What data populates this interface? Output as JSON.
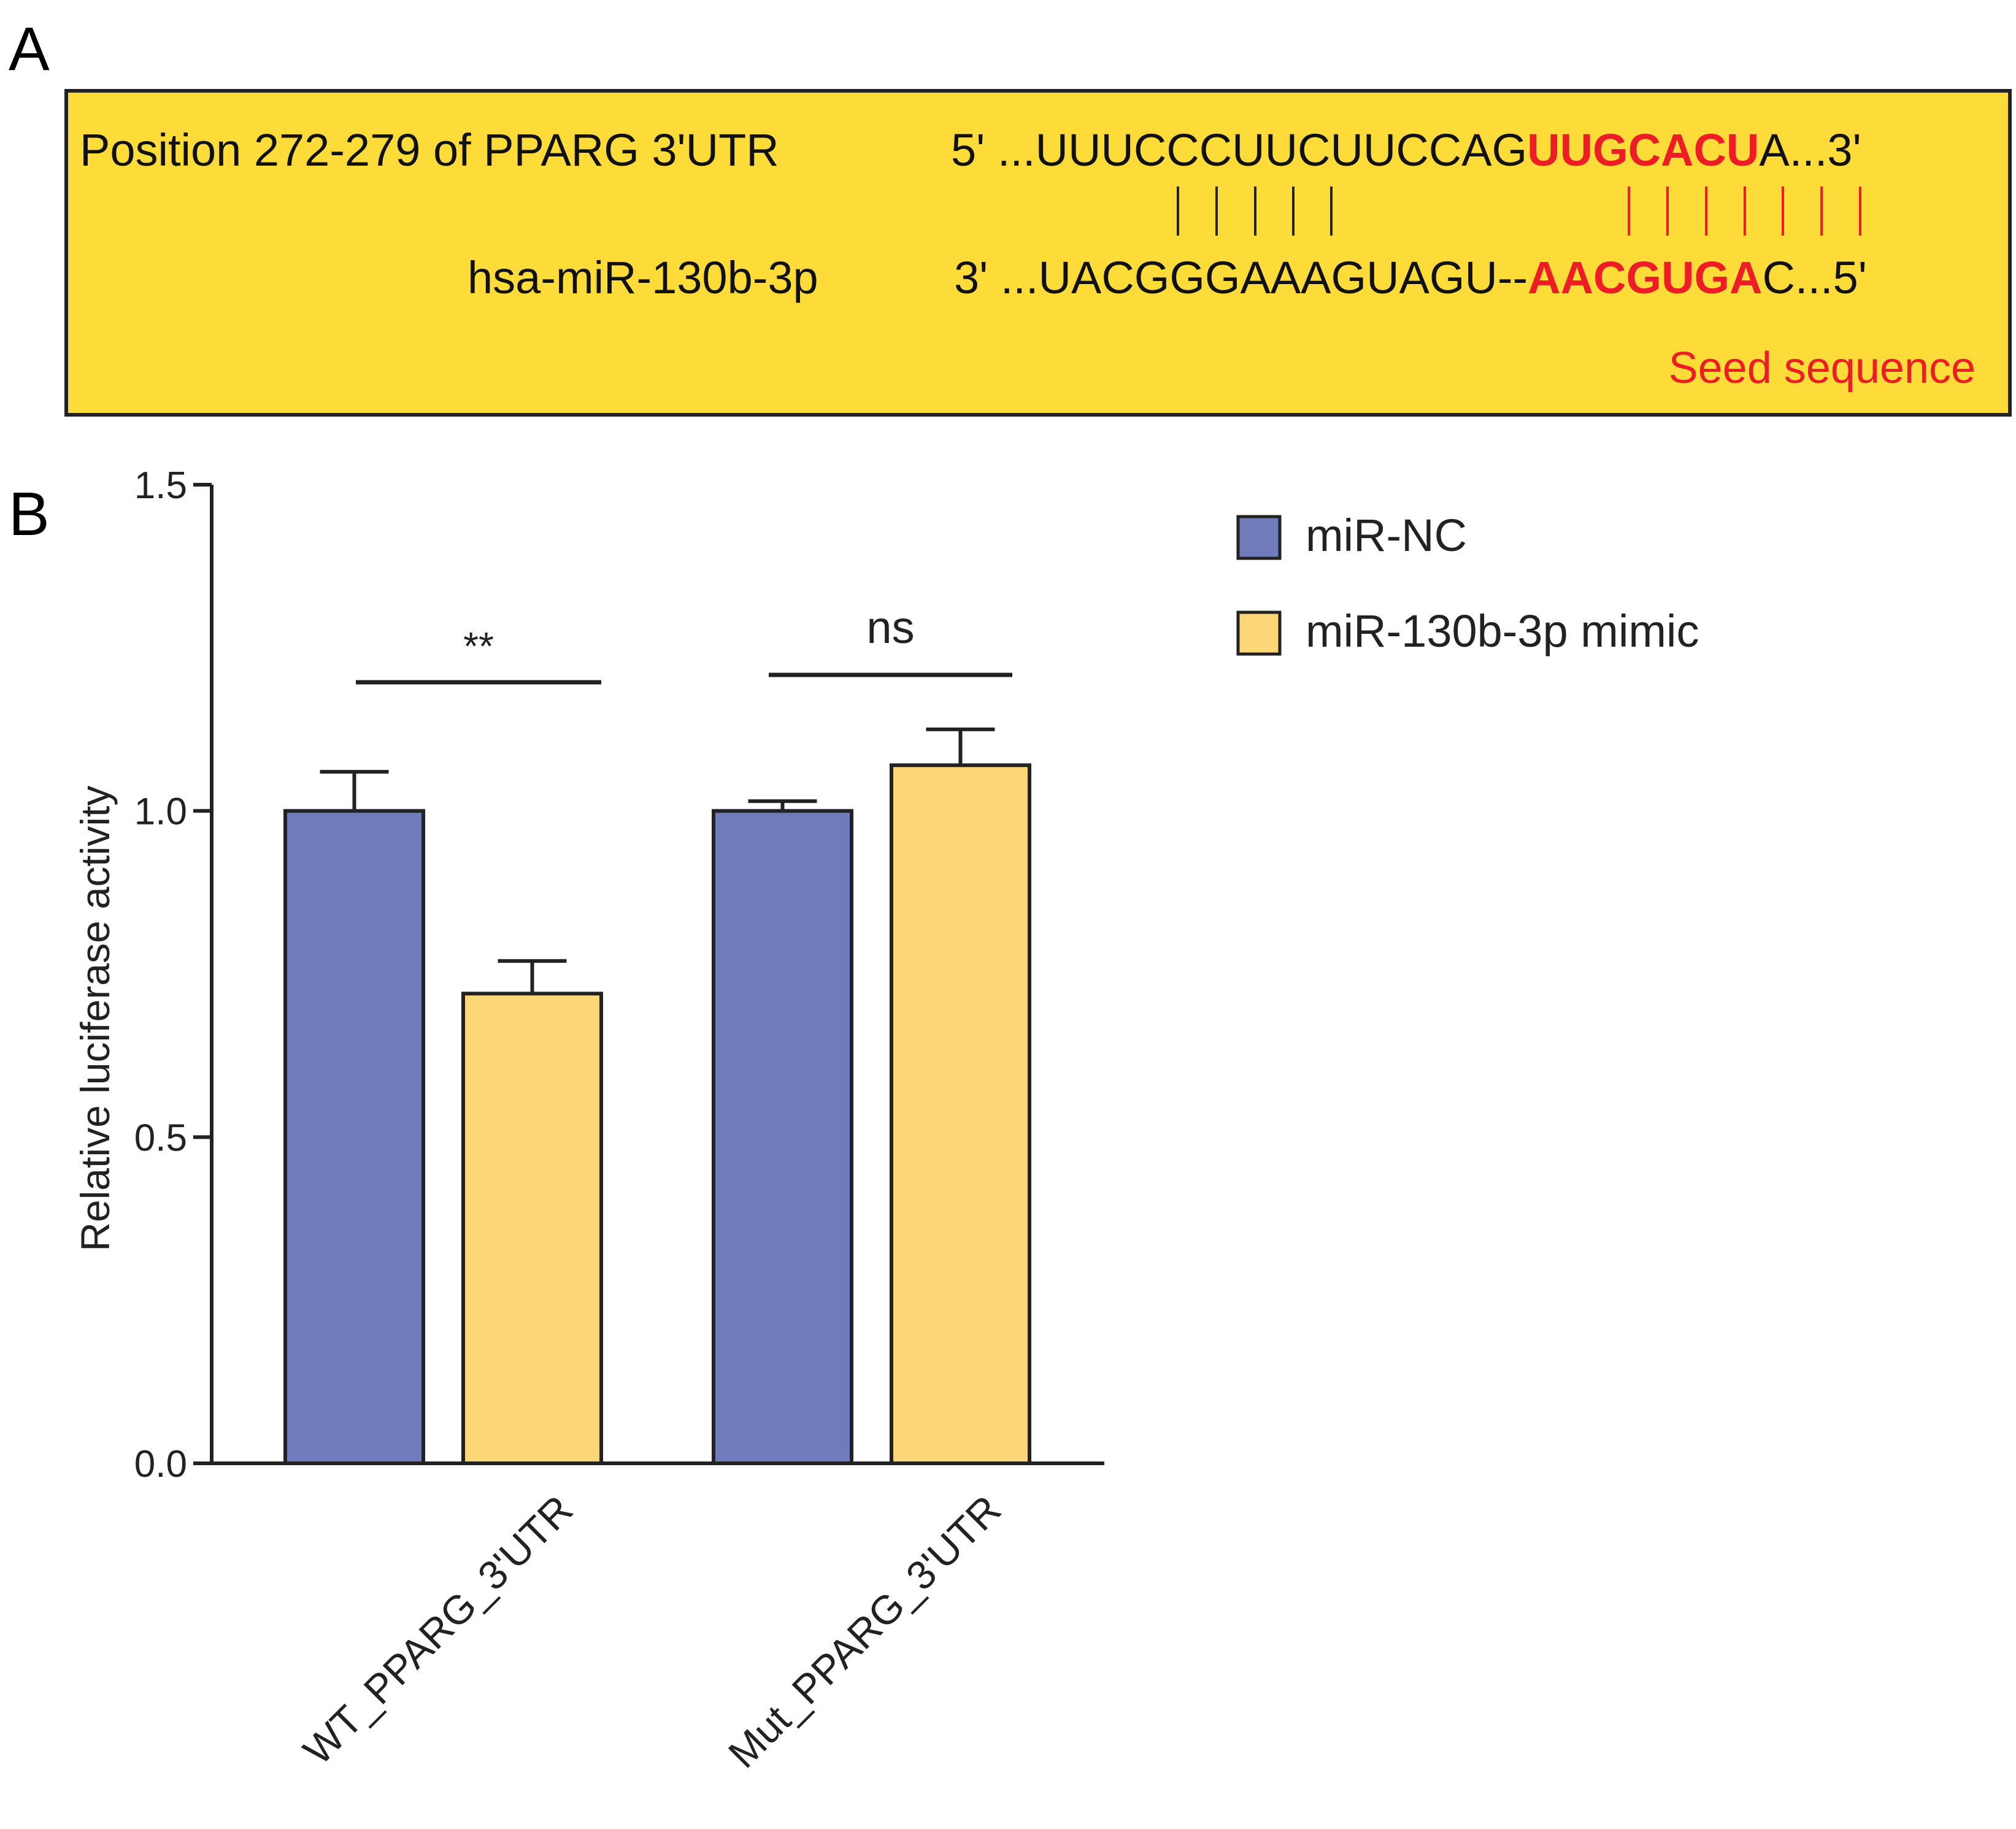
{
  "panel_a": {
    "letter": "A",
    "utr_label": "Position 272-279 of PPARG 3'UTR",
    "utr_prefix": "5' ...UUUCCCUUCUUCCAG",
    "utr_seed": "UUGCACU",
    "utr_suffix": "A...3'",
    "mir_label": "hsa-miR-130b-3p",
    "mir_prefix": "3' ...UACGGGAAAGUAGU--",
    "mir_seed": "AACGUGA",
    "mir_suffix": "C...5'",
    "seed_caption": "Seed sequence",
    "box_color": "#FDDC3A",
    "seed_color": "#EE1C25"
  },
  "panel_b": {
    "letter": "B",
    "significance": [
      "**",
      "ns"
    ]
  },
  "chart_data": {
    "type": "bar",
    "categories": [
      "WT_PPARG_3'UTR",
      "Mut_PPARG_3'UTR"
    ],
    "series": [
      {
        "name": "miR-NC",
        "values": [
          1.0,
          1.0
        ],
        "errors": [
          0.06,
          0.015
        ],
        "color": "#6F7BBA"
      },
      {
        "name": "miR-130b-3p mimic",
        "values": [
          0.72,
          1.07
        ],
        "errors": [
          0.05,
          0.055
        ],
        "color": "#FDD777"
      }
    ],
    "ylabel": "Relative luciferase activity",
    "ylim": [
      0,
      1.5
    ],
    "yticks": [
      "0.0",
      "0.5",
      "1.0",
      "1.5"
    ],
    "grid": false,
    "legend": "top-right"
  }
}
